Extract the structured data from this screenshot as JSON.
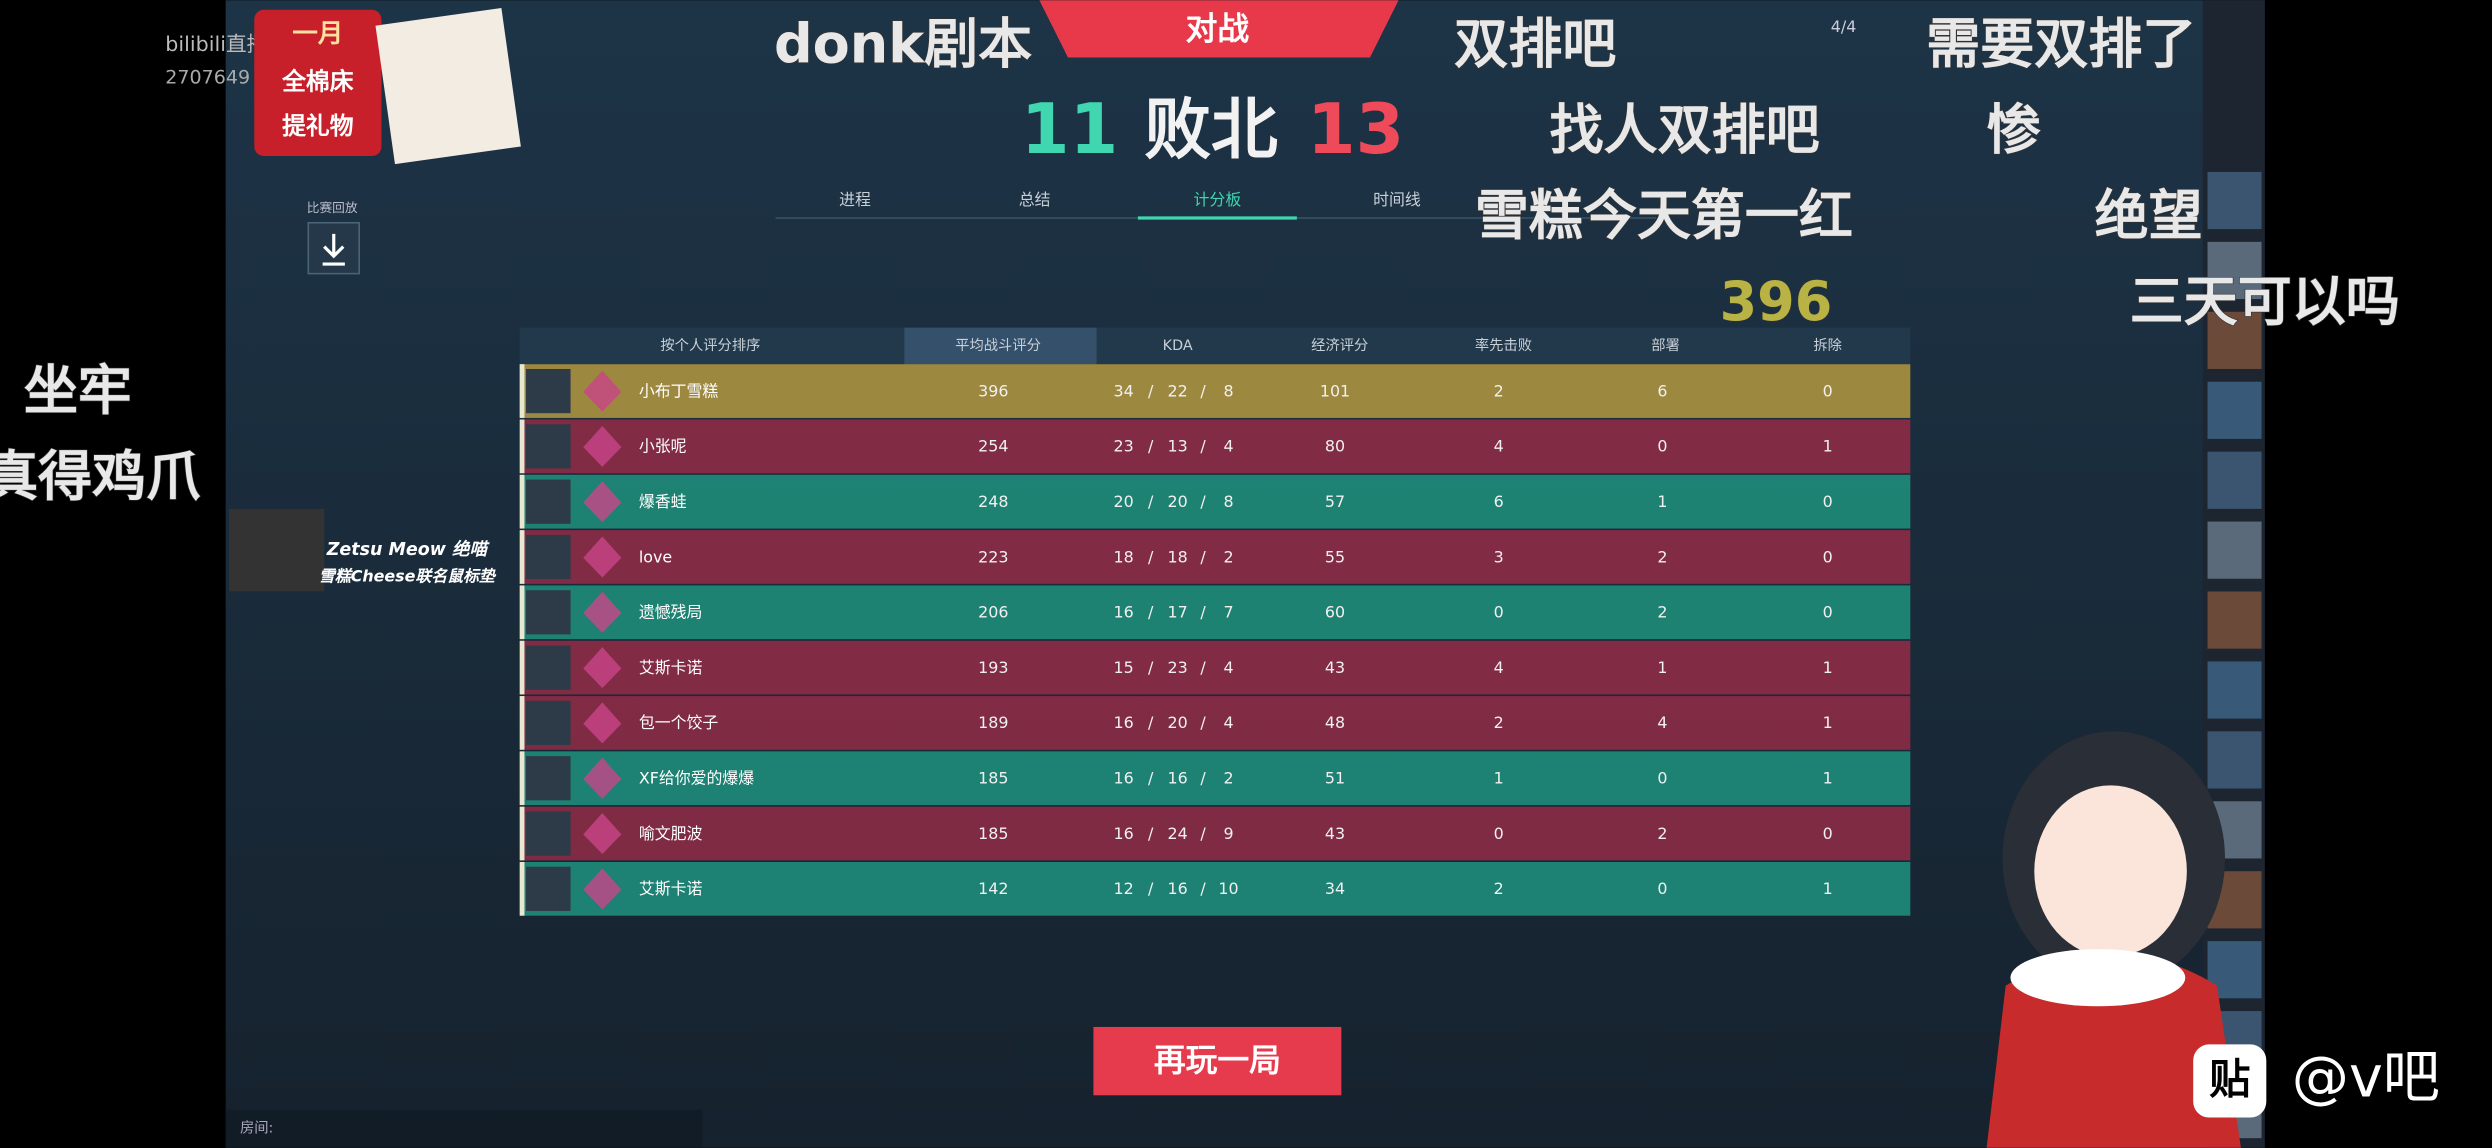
{
  "header": {
    "mode": "对战",
    "score_left": "11",
    "result": "败北",
    "score_right": "13",
    "tabs": [
      "进程",
      "总结",
      "计分板",
      "时间线"
    ],
    "replay_label": "比赛回放",
    "players_count": "4/4"
  },
  "table": {
    "columns": [
      "按个人评分排序",
      "平均战斗评分",
      "KDA",
      "经济评分",
      "率先击败",
      "部署",
      "拆除"
    ],
    "kda_separator": "/",
    "rows": [
      [
        "小布丁雪糕",
        396,
        34,
        22,
        8,
        101,
        2,
        6,
        0
      ],
      [
        "小张呢",
        254,
        23,
        13,
        4,
        80,
        4,
        0,
        1
      ],
      [
        "爆香蛙",
        248,
        20,
        20,
        8,
        57,
        6,
        1,
        0
      ],
      [
        "love",
        223,
        18,
        18,
        2,
        55,
        3,
        2,
        0
      ],
      [
        "遗憾残局",
        206,
        16,
        17,
        7,
        60,
        0,
        2,
        0
      ],
      [
        "艾斯卡诺",
        193,
        15,
        23,
        4,
        43,
        4,
        1,
        1
      ],
      [
        "包一个饺子",
        189,
        16,
        20,
        4,
        48,
        2,
        4,
        1
      ],
      [
        "XF给你爱的爆爆",
        185,
        16,
        16,
        2,
        51,
        1,
        0,
        1
      ],
      [
        "喻文肥波",
        185,
        16,
        24,
        9,
        43,
        0,
        2,
        0
      ],
      [
        "艾斯卡诺",
        142,
        12,
        16,
        10,
        34,
        2,
        0,
        1
      ]
    ],
    "row_colors": [
      "#a8903f",
      "#8a2b45",
      "#1e8a78",
      "#8a2b45",
      "#1e8a78",
      "#8a2b45",
      "#8a2b45",
      "#1e8a78",
      "#8a2b45",
      "#1e8a78"
    ]
  },
  "button": "再玩一局",
  "room_label": "房间:",
  "danmaku": [
    "donk剧本",
    "双排吧",
    "需要双排了",
    "找人双排吧",
    "惨",
    "雪糕今天第一红",
    "绝望",
    "396",
    "三天可以吗",
    "坐牢",
    "真得鸡爪"
  ],
  "overlay": {
    "bilibili": "bilibili直播",
    "room_id": "2707649",
    "promo_top": "一月",
    "promo_mid": "全棉床",
    "promo_bottom": "提礼物",
    "meow_title": "Zetsu Meow 绝喵",
    "meow_sub": "雪糕Cheese联名鼠标垫",
    "watermark": "@v吧",
    "sticker": "贴"
  }
}
